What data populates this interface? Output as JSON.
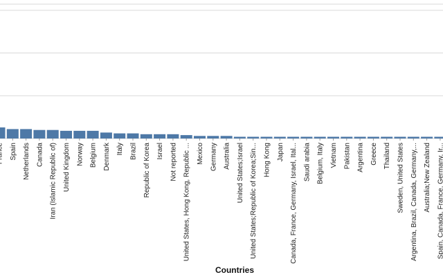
{
  "chart_data": {
    "type": "bar",
    "xlabel": "Countries",
    "ylabel": "",
    "grid": true,
    "legend": "none",
    "bar_color": "#4e79a7",
    "gridline_color": "#d9d9d9",
    "ylim": [
      0,
      180
    ],
    "categories": [
      "France",
      "Spain",
      "Netherlands",
      "Canada",
      "Iran (Islamic Republic of)",
      "United Kingdom",
      "Norway",
      "Belgium",
      "Denmark",
      "Italy",
      "Brazil",
      "Republic of Korea",
      "Israel",
      "Not reported",
      "United States, Hong Kong, Republic ...",
      "Mexico",
      "Germany",
      "Australia",
      "United States;Israel",
      "United States;Republic of Korea;Sin...",
      "Hong Kong",
      "Japan",
      "Canada, France, Germany, Israel, Ital...",
      "Saudi arabia",
      "Belgium, Italy",
      "Vietnam",
      "Pakistan",
      "Argentina",
      "Greece",
      "Thailand",
      "Sweden, United States",
      "Argentina, Brazil, Canada, Germany,...",
      "Australia;New Zealand",
      "Spain, Canada, France, Germany, Ir..."
    ],
    "values": [
      13,
      11,
      11,
      10,
      10,
      9,
      9,
      9,
      7,
      6,
      6,
      5,
      5,
      5,
      4,
      3,
      3,
      3,
      2,
      2,
      2,
      2,
      2,
      2,
      2,
      2,
      2,
      2,
      2,
      2,
      2,
      2,
      2,
      2
    ]
  }
}
